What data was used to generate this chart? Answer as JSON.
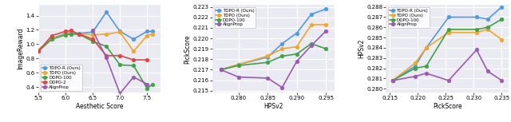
{
  "plot1": {
    "xlabel": "Aesthetic Score",
    "ylabel": "ImageReward",
    "xlim": [
      5.5,
      7.75
    ],
    "ylim": [
      0.32,
      1.55
    ],
    "xticks": [
      5.5,
      6.0,
      6.5,
      7.0,
      7.5
    ],
    "ytick_step": 0.2,
    "series": {
      "TDPO-R (Ours)": {
        "color": "#4C9BE8",
        "marker": "o",
        "x": [
          5.5,
          5.75,
          6.0,
          6.1,
          6.25,
          6.5,
          6.75,
          7.0,
          7.25,
          7.5,
          7.6
        ],
        "y": [
          0.92,
          1.08,
          1.15,
          1.16,
          1.15,
          1.17,
          1.45,
          1.18,
          1.07,
          1.18,
          1.18
        ]
      },
      "TDPO (Ours)": {
        "color": "#F5A623",
        "marker": "o",
        "x": [
          5.5,
          5.75,
          6.0,
          6.1,
          6.25,
          6.5,
          6.75,
          7.0,
          7.25,
          7.5,
          7.6
        ],
        "y": [
          0.92,
          1.08,
          1.14,
          1.15,
          1.14,
          1.13,
          1.14,
          1.17,
          0.9,
          1.12,
          1.14
        ]
      },
      "DDPO-100": {
        "color": "#3DA444",
        "marker": "o",
        "x": [
          5.5,
          5.75,
          6.0,
          6.1,
          6.25,
          6.5,
          6.75,
          7.0,
          7.25,
          7.5,
          7.6
        ],
        "y": [
          0.9,
          1.07,
          1.13,
          1.14,
          1.14,
          1.04,
          0.97,
          0.71,
          0.7,
          0.38,
          0.44
        ]
      },
      "DDPO-2": {
        "color": "#E84040",
        "marker": "o",
        "x": [
          5.5,
          5.75,
          6.0,
          6.1,
          6.25,
          6.5,
          6.75,
          7.0,
          7.25,
          7.5
        ],
        "y": [
          0.9,
          1.12,
          1.18,
          1.19,
          1.14,
          1.07,
          0.84,
          0.84,
          0.78,
          0.78
        ]
      },
      "AlignProp": {
        "color": "#9B59B6",
        "marker": "o",
        "x": [
          6.25,
          6.5,
          6.75,
          7.0,
          7.25,
          7.5
        ],
        "y": [
          null,
          1.19,
          0.81,
          0.31,
          0.54,
          0.44
        ]
      }
    },
    "legend_loc": "lower left"
  },
  "plot2": {
    "xlabel": "HPSv2",
    "ylabel": "PickScore",
    "xlim": [
      0.2755,
      0.2965
    ],
    "ylim": [
      0.2148,
      0.2232
    ],
    "xticks": [
      0.28,
      0.285,
      0.29,
      0.295
    ],
    "ytick_step": 0.001,
    "series": {
      "TDPO-R (Ours)": {
        "color": "#4C9BE8",
        "marker": "o",
        "x": [
          0.277,
          0.28,
          0.285,
          0.2875,
          0.29,
          0.2925,
          0.295
        ],
        "y": [
          0.217,
          0.2175,
          0.2182,
          0.2195,
          0.2205,
          0.2223,
          0.2228
        ]
      },
      "TDPO (Ours)": {
        "color": "#F5A623",
        "marker": "o",
        "x": [
          0.277,
          0.28,
          0.285,
          0.2875,
          0.29,
          0.2925,
          0.295
        ],
        "y": [
          0.217,
          0.2175,
          0.2183,
          0.219,
          0.2192,
          0.2213,
          0.2213
        ]
      },
      "DDPO-100": {
        "color": "#3DA444",
        "marker": "o",
        "x": [
          0.277,
          0.28,
          0.285,
          0.2875,
          0.29,
          0.2925,
          0.295
        ],
        "y": [
          0.217,
          0.2174,
          0.2177,
          0.2183,
          0.2185,
          0.2195,
          0.219
        ]
      },
      "AlignProp": {
        "color": "#9B59B6",
        "marker": "o",
        "x": [
          0.277,
          0.28,
          0.285,
          0.2875,
          0.29,
          0.2925,
          0.295
        ],
        "y": [
          0.217,
          0.2163,
          0.2162,
          0.2153,
          0.2178,
          0.2193,
          0.2207
        ]
      }
    },
    "legend_loc": "upper left"
  },
  "plot3": {
    "xlabel": "PickScore",
    "ylabel": "HPSv2",
    "xlim": [
      0.2143,
      0.2362
    ],
    "ylim": [
      0.2796,
      0.2882
    ],
    "xticks": [
      0.215,
      0.22,
      0.225,
      0.23,
      0.235
    ],
    "ytick_step": 0.001,
    "series": {
      "TDPO-R (Ours)": {
        "color": "#4C9BE8",
        "marker": "o",
        "x": [
          0.2155,
          0.2195,
          0.2215,
          0.2255,
          0.2305,
          0.2325,
          0.235
        ],
        "y": [
          0.2808,
          0.2822,
          0.284,
          0.287,
          0.287,
          0.2868,
          0.288
        ]
      },
      "TDPO (Ours)": {
        "color": "#F5A623",
        "marker": "o",
        "x": [
          0.2155,
          0.2195,
          0.2215,
          0.2255,
          0.2305,
          0.2325,
          0.235
        ],
        "y": [
          0.2808,
          0.2825,
          0.284,
          0.2855,
          0.2855,
          0.2858,
          0.2848
        ]
      },
      "DDPO-100": {
        "color": "#3DA444",
        "marker": "o",
        "x": [
          0.2155,
          0.2195,
          0.2215,
          0.2255,
          0.2305,
          0.2325,
          0.235
        ],
        "y": [
          0.2808,
          0.282,
          0.2822,
          0.2858,
          0.2858,
          0.286,
          0.2868
        ]
      },
      "AlignProp": {
        "color": "#9B59B6",
        "marker": "o",
        "x": [
          0.2155,
          0.2195,
          0.2215,
          0.2255,
          0.2305,
          0.2325,
          0.235
        ],
        "y": [
          0.2808,
          0.2812,
          0.2815,
          0.2808,
          0.2838,
          0.2817,
          0.2808
        ]
      }
    },
    "legend_loc": "upper left"
  },
  "background_color": "#EAEAF2",
  "grid_color": "white",
  "line_width": 1.2,
  "marker_size": 3.5,
  "fig_width": 6.4,
  "fig_height": 1.53
}
